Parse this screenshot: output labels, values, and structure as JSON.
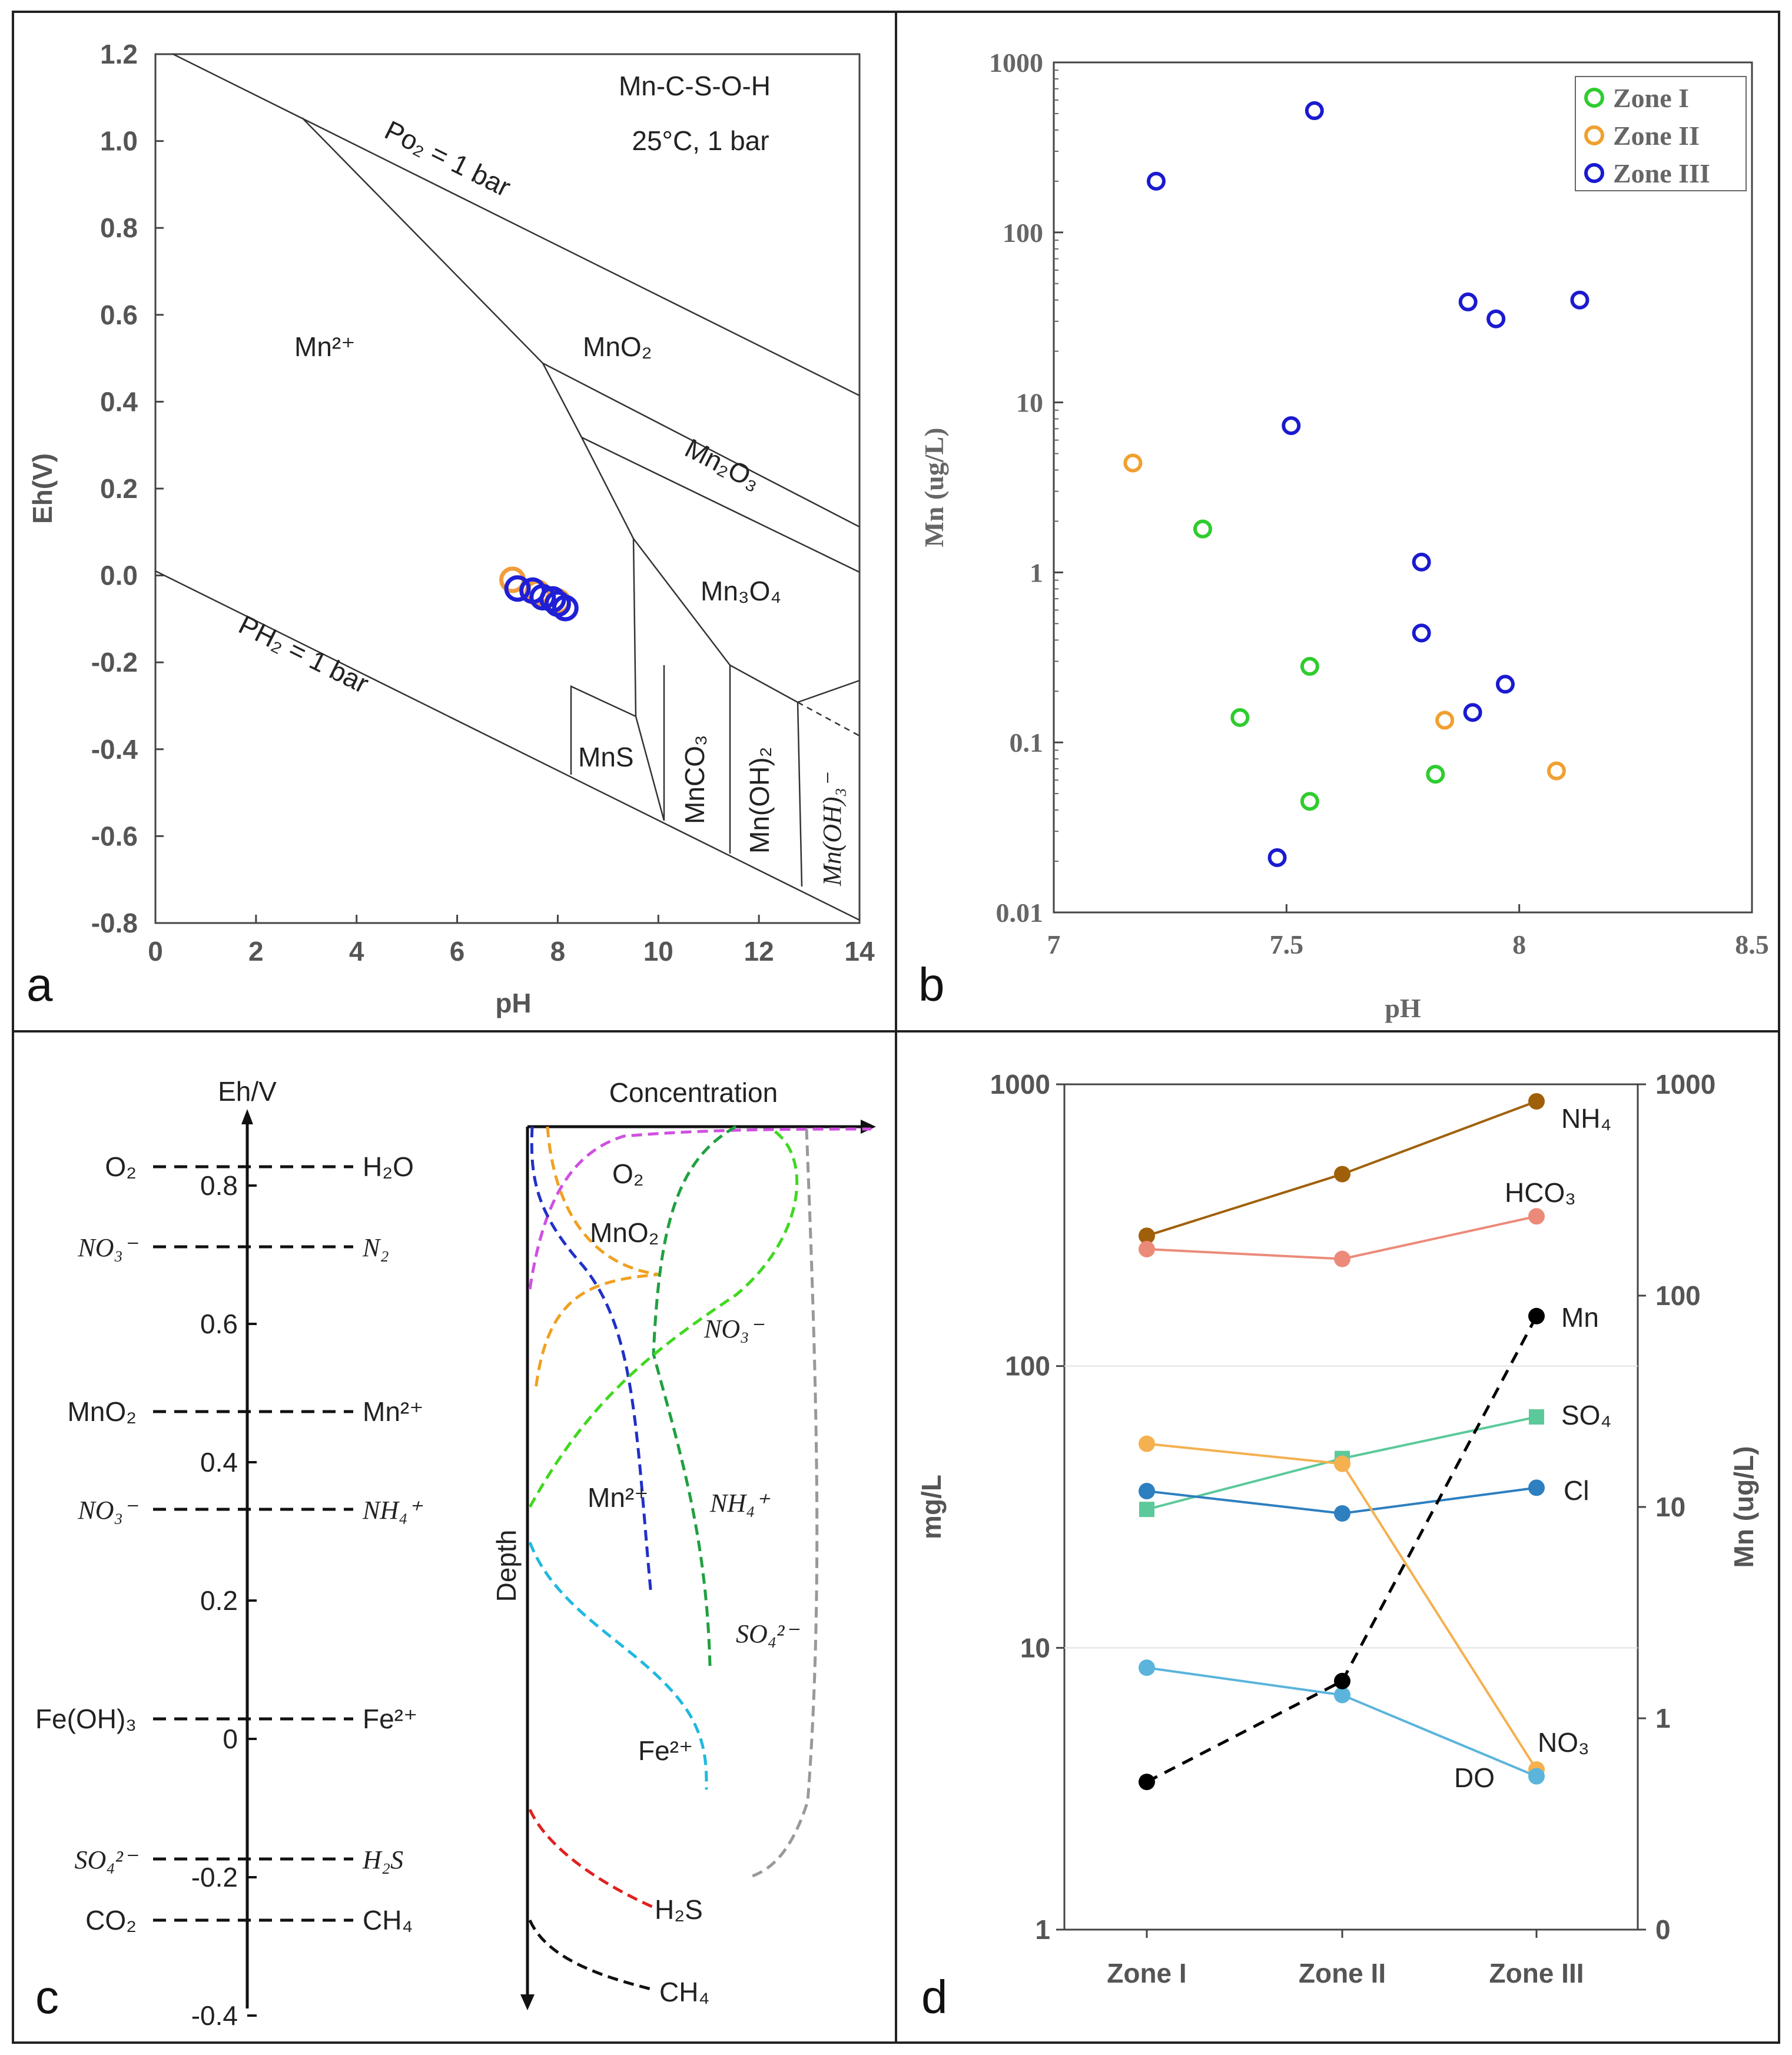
{
  "figure_title": "Mn geochemistry figure panels a-d",
  "panels": {
    "a": {
      "letter": "a"
    },
    "b": {
      "letter": "b"
    },
    "c": {
      "letter": "c"
    },
    "d": {
      "letter": "d"
    }
  },
  "chart_data": [
    {
      "id": "a",
      "type": "scatter",
      "title": "Mn-C-S-O-H",
      "subtitle": "25°C, 1 bar",
      "xlabel": "pH",
      "ylabel": "Eh(V)",
      "xlim": [
        0,
        14
      ],
      "ylim": [
        -0.8,
        1.2
      ],
      "xticks": [
        "0",
        "2",
        "4",
        "6",
        "8",
        "10",
        "12",
        "14"
      ],
      "yticks": [
        "-0.8",
        "-0.6",
        "-0.4",
        "-0.2",
        "0.0",
        "0.2",
        "0.4",
        "0.6",
        "0.8",
        "1.0",
        "1.2"
      ],
      "field_labels": {
        "mn2": "Mn²⁺",
        "mno2": "MnO₂",
        "mn2o3": "Mn₂O₃",
        "mn3o4": "Mn₃O₄",
        "mns": "MnS",
        "mnco3": "MnCO₃",
        "mnoh2": "Mn(OH)₂",
        "mnoh3": "Mn(OH)₃⁻",
        "po2": "Po₂ = 1 bar",
        "ph2": "PH₂ = 1 bar"
      },
      "series": [
        {
          "name": "orange points",
          "color": "#f39c3c",
          "x": [
            7.1,
            7.6,
            8.0
          ],
          "y": [
            -0.01,
            -0.04,
            -0.06
          ]
        },
        {
          "name": "blue points",
          "color": "#1f1fd6",
          "x": [
            7.2,
            7.5,
            7.7,
            7.9,
            8.0,
            8.15
          ],
          "y": [
            -0.03,
            -0.035,
            -0.05,
            -0.055,
            -0.065,
            -0.075
          ]
        }
      ]
    },
    {
      "id": "b",
      "type": "scatter",
      "xlabel": "pH",
      "ylabel": "Mn (ug/L)",
      "xlim": [
        7,
        8.5
      ],
      "ylim": [
        0.01,
        1000
      ],
      "yscale": "log",
      "xticks": [
        "7",
        "7.5",
        "8",
        "8.5"
      ],
      "yticks": [
        "0.01",
        "0.1",
        "1",
        "10",
        "100",
        "1000"
      ],
      "legend": "top-right",
      "series": [
        {
          "name": "Zone I",
          "color": "#2ecc2e",
          "x": [
            7.32,
            7.4,
            7.55,
            7.55,
            7.82
          ],
          "y": [
            1.8,
            0.14,
            0.28,
            0.045,
            0.065
          ]
        },
        {
          "name": "Zone II",
          "color": "#f0a030",
          "x": [
            7.17,
            7.84,
            8.08
          ],
          "y": [
            4.4,
            0.135,
            0.068
          ]
        },
        {
          "name": "Zone III",
          "color": "#1a1ad0",
          "x": [
            7.22,
            7.56,
            7.51,
            7.48,
            7.79,
            7.79,
            7.89,
            7.9,
            7.95,
            7.97,
            8.13
          ],
          "y": [
            200,
            520,
            7.3,
            0.021,
            1.15,
            0.44,
            39,
            0.15,
            31,
            0.22,
            40
          ]
        }
      ]
    },
    {
      "id": "c",
      "type": "diagram",
      "axis_label": "Eh/V",
      "axis_ticks": [
        "0.8",
        "0.6",
        "0.4",
        "0.2",
        "0",
        "-0.2",
        "-0.4"
      ],
      "redox_pairs": [
        {
          "ox": "O₂",
          "red": "H₂O",
          "italic": false
        },
        {
          "ox": "NO₃⁻",
          "red": "N₂",
          "italic": true
        },
        {
          "ox": "MnO₂",
          "red": "Mn²⁺",
          "italic": false
        },
        {
          "ox": "NO₃⁻",
          "red": "NH₄⁺",
          "italic": true
        },
        {
          "ox": "Fe(OH)₃",
          "red": "Fe²⁺",
          "italic": false
        },
        {
          "ox": "SO₄²⁻",
          "red": "H₂S",
          "italic": true
        },
        {
          "ox": "CO₂",
          "red": "CH₄",
          "italic": false
        }
      ],
      "profile_title": "Concentration",
      "depth_label": "Depth",
      "profile_labels": {
        "o2": "O₂",
        "mno2": "MnO₂",
        "no3": "NO₃⁻",
        "mn2": "Mn²⁺",
        "nh4": "NH₄⁺",
        "so4": "SO₄²⁻",
        "fe2": "Fe²⁺",
        "h2s": "H₂S",
        "ch4": "CH₄"
      }
    },
    {
      "id": "d",
      "type": "line",
      "categories": [
        "Zone I",
        "Zone II",
        "Zone III"
      ],
      "ylabel": "mg/L",
      "y2label": "Mn (ug/L)",
      "yscale": "log",
      "ylim": [
        1,
        1000
      ],
      "y2lim": [
        0,
        1000
      ],
      "yticks": [
        "1",
        "10",
        "100",
        "1000"
      ],
      "y2ticks": [
        "0",
        "1",
        "10",
        "100",
        "1000"
      ],
      "series": [
        {
          "name": "NH₄",
          "color": "#a0600a",
          "values": [
            290,
            480,
            870
          ],
          "axis": "left"
        },
        {
          "name": "HCO₃",
          "color": "#ec8a7a",
          "values": [
            260,
            240,
            340
          ],
          "axis": "left"
        },
        {
          "name": "SO₄",
          "color": "#5cc99a",
          "values": [
            31,
            47,
            66
          ],
          "axis": "left"
        },
        {
          "name": "Cl",
          "color": "#2d7fc0",
          "values": [
            36,
            30,
            37
          ],
          "axis": "left"
        },
        {
          "name": "NO₃",
          "color": "#f5b050",
          "values": [
            53,
            45,
            3.7
          ],
          "axis": "left"
        },
        {
          "name": "DO",
          "color": "#5ab4dc",
          "values": [
            8.5,
            6.8,
            3.5
          ],
          "axis": "left"
        },
        {
          "name": "Mn",
          "color": "#000000",
          "values": [
            0.5,
            1.5,
            80
          ],
          "axis": "right",
          "dashed": true
        }
      ]
    }
  ]
}
